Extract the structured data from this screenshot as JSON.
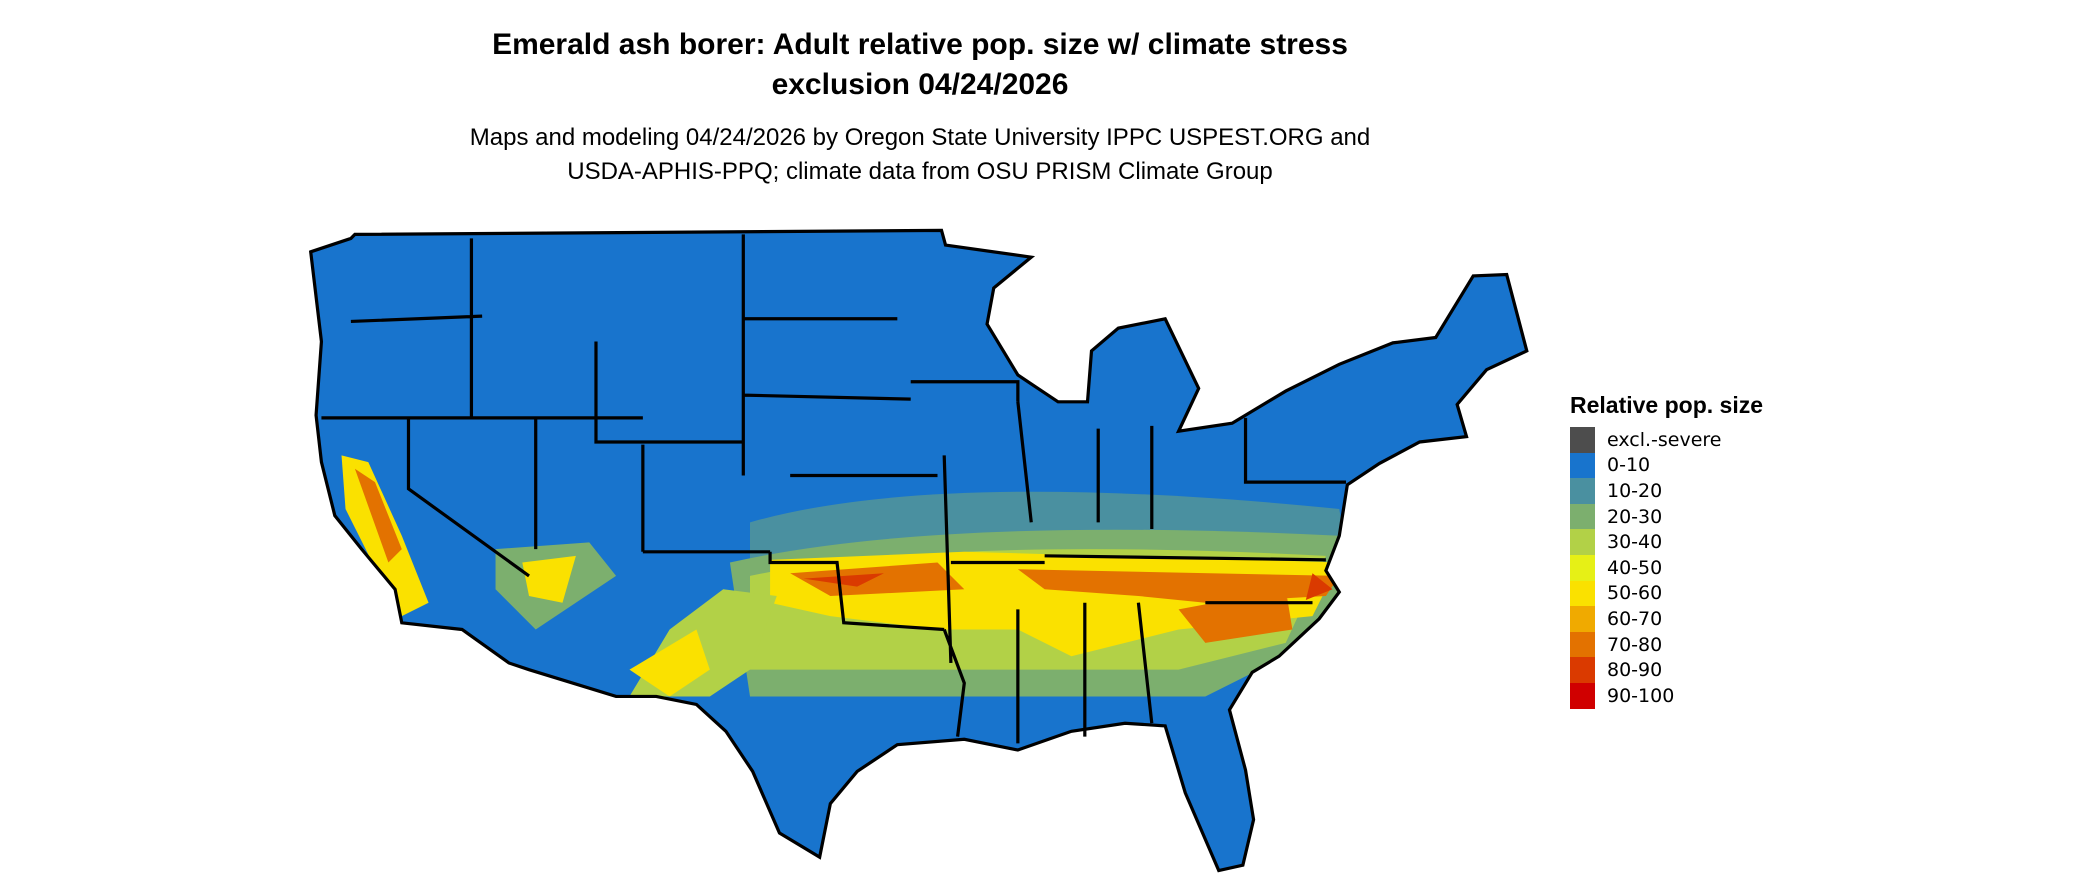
{
  "title": [
    "Emerald ash borer: Adult relative pop. size w/ climate stress",
    "exclusion 04/24/2026"
  ],
  "subtitle": [
    "Maps and modeling 04/24/2026 by Oregon State University IPPC USPEST.ORG and",
    "USDA-APHIS-PPQ; climate data from OSU PRISM Climate Group"
  ],
  "legend": {
    "title": "Relative pop. size",
    "items": [
      {
        "label": "excl.-severe",
        "color": "#4d4d4d"
      },
      {
        "label": "0-10",
        "color": "#1874cd"
      },
      {
        "label": "10-20",
        "color": "#4a90a0"
      },
      {
        "label": "20-30",
        "color": "#7caf6e"
      },
      {
        "label": "30-40",
        "color": "#b2d147"
      },
      {
        "label": "40-50",
        "color": "#e6f016"
      },
      {
        "label": "50-60",
        "color": "#fae100"
      },
      {
        "label": "60-70",
        "color": "#f0aa00"
      },
      {
        "label": "70-80",
        "color": "#e37200"
      },
      {
        "label": "80-90",
        "color": "#da3a00"
      },
      {
        "label": "90-100",
        "color": "#d00000"
      }
    ]
  },
  "map": {
    "region": "Contiguous United States",
    "border_color": "#000000"
  }
}
